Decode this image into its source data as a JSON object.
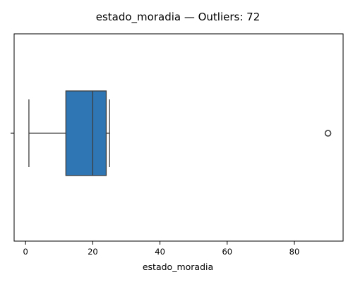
{
  "chart_data": {
    "type": "boxplot",
    "title": "estado_moradia — Outliers: 72",
    "xlabel": "estado_moradia",
    "ylabel": "",
    "xlim": [
      -3.4,
      94.5
    ],
    "xticks": [
      0,
      20,
      40,
      60,
      80
    ],
    "ytick_label": "",
    "grid": false,
    "box": {
      "whisker_low": 1,
      "q1": 12,
      "median": 20,
      "q3": 24,
      "whisker_high": 25,
      "outliers": [
        90
      ],
      "color": "#2f77b4",
      "line_color": "#3d3d3d"
    }
  }
}
